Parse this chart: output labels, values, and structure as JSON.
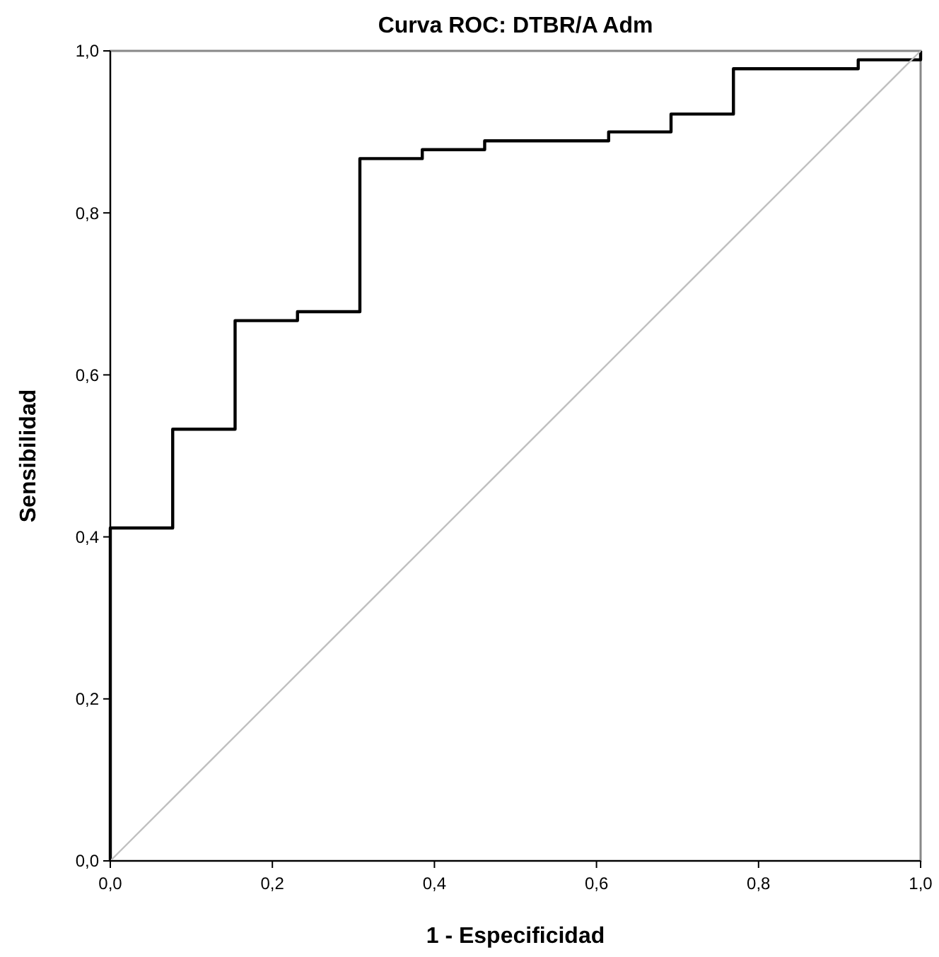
{
  "chart_data": {
    "type": "step",
    "title": "Curva ROC: DTBR/A Adm",
    "xlabel": "1 - Especificidad",
    "ylabel": "Sensibilidad",
    "xlim": [
      0,
      1
    ],
    "ylim": [
      0,
      1
    ],
    "xticks": [
      {
        "value": 0,
        "label": "0,0"
      },
      {
        "value": 0.2,
        "label": "0,2"
      },
      {
        "value": 0.4,
        "label": "0,4"
      },
      {
        "value": 0.6,
        "label": "0,6"
      },
      {
        "value": 0.8,
        "label": "0,8"
      },
      {
        "value": 1,
        "label": "1,0"
      }
    ],
    "yticks": [
      {
        "value": 0,
        "label": "0,0"
      },
      {
        "value": 0.2,
        "label": "0,2"
      },
      {
        "value": 0.4,
        "label": "0,4"
      },
      {
        "value": 0.6,
        "label": "0,6"
      },
      {
        "value": 0.8,
        "label": "0,8"
      },
      {
        "value": 1,
        "label": "1,0"
      }
    ],
    "grid": false,
    "series": [
      {
        "color": "#000000",
        "x": [
          0,
          0,
          0.077,
          0.154,
          0.231,
          0.308,
          0.385,
          0.462,
          0.615,
          0.692,
          0.769,
          0.923,
          1
        ],
        "values": [
          0,
          0.411,
          0.533,
          0.667,
          0.678,
          0.867,
          0.878,
          0.889,
          0.9,
          0.922,
          0.978,
          0.989,
          1
        ]
      },
      {
        "type": "line",
        "color": "#c0c0c0",
        "x": [
          0,
          1
        ],
        "values": [
          0,
          1
        ]
      }
    ]
  }
}
